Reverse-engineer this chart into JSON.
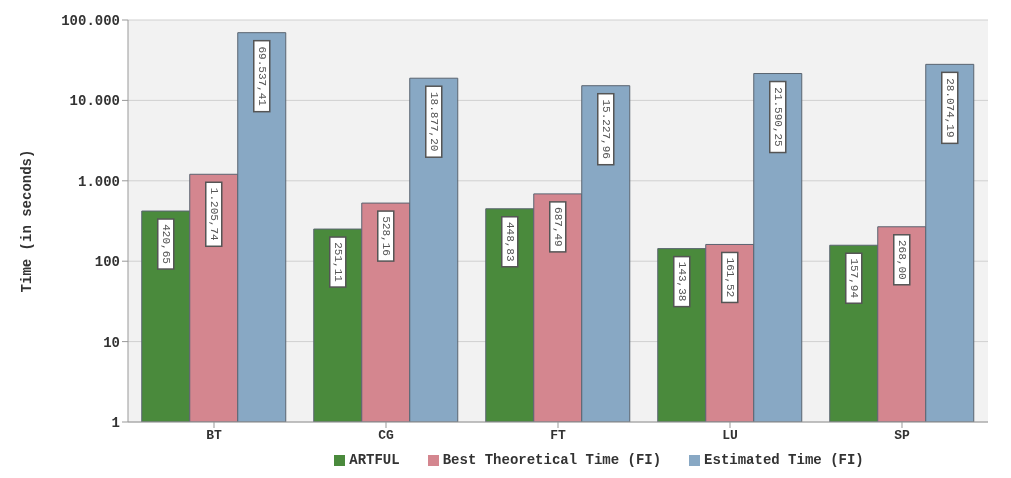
{
  "chart_data": {
    "type": "bar",
    "ylabel": "Time (in seconds)",
    "categories": [
      "BT",
      "CG",
      "FT",
      "LU",
      "SP"
    ],
    "series": [
      {
        "name": "ARTFUL",
        "color": "#4a8a3c",
        "values": [
          420.65,
          251.11,
          448.83,
          143.38,
          157.94
        ],
        "value_labels": [
          "420,65",
          "251,11",
          "448,83",
          "143,38",
          "157,94"
        ]
      },
      {
        "name": "Best Theoretical Time (FI)",
        "color": "#d4868f",
        "values": [
          1205.74,
          528.16,
          687.49,
          161.52,
          268.0
        ],
        "value_labels": [
          "1.205,74",
          "528,16",
          "687,49",
          "161,52",
          "268,00"
        ]
      },
      {
        "name": "Estimated Time (FI)",
        "color": "#88a8c4",
        "values": [
          69537.41,
          18877.2,
          15227.96,
          21590.25,
          28074.19
        ],
        "value_labels": [
          "69.537,41",
          "18.877,20",
          "15.227,96",
          "21.590,25",
          "28.074,19"
        ]
      }
    ],
    "log": true,
    "ylim": [
      1,
      100000
    ],
    "yticks": [
      1,
      10,
      100,
      {
        "value": 1000,
        "label": "1.000"
      },
      {
        "value": 10000,
        "label": "10.000"
      },
      {
        "value": 100000,
        "label": "100.000"
      }
    ],
    "grid": "y",
    "legend": "bottom"
  }
}
